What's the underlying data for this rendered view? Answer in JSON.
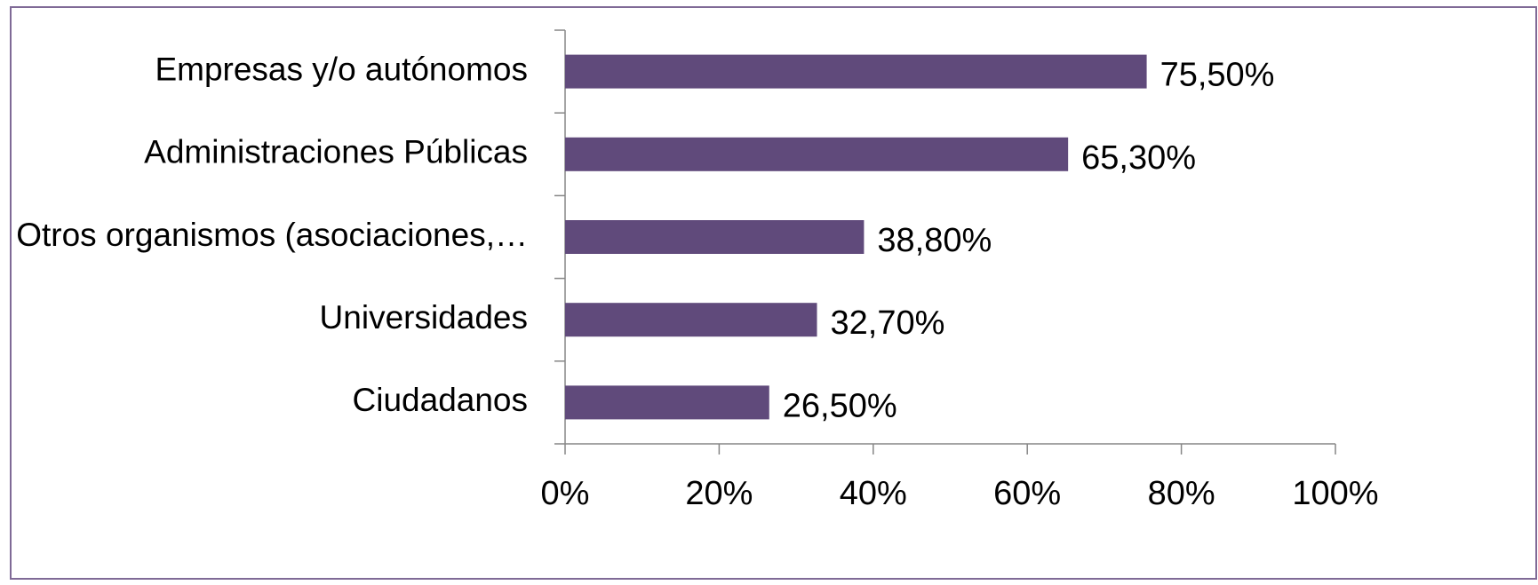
{
  "chart_data": {
    "type": "bar",
    "orientation": "horizontal",
    "categories": [
      "Empresas y/o autónomos",
      "Administraciones Públicas",
      "Otros organismos (asociaciones,…",
      "Universidades",
      "Ciudadanos"
    ],
    "values": [
      75.5,
      65.3,
      38.8,
      32.7,
      26.5
    ],
    "value_labels": [
      "75,50%",
      "65,30%",
      "38,80%",
      "32,70%",
      "26,50%"
    ],
    "color": "#604a7b",
    "xlim": [
      0,
      100
    ],
    "xticks": [
      {
        "value": 0,
        "label": "0%"
      },
      {
        "value": 20,
        "label": "20%"
      },
      {
        "value": 40,
        "label": "40%"
      },
      {
        "value": 60,
        "label": "60%"
      },
      {
        "value": 80,
        "label": "80%"
      },
      {
        "value": 100,
        "label": "100%"
      }
    ],
    "grid": false
  }
}
